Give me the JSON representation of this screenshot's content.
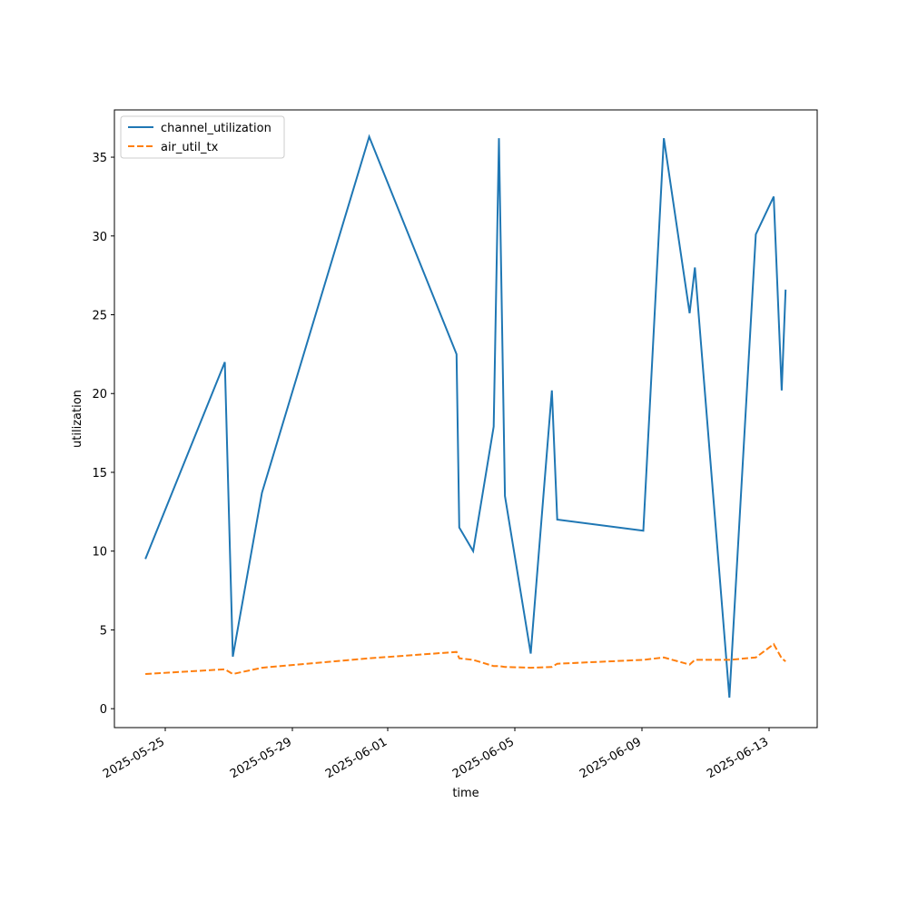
{
  "chart_data": {
    "type": "line",
    "x": [
      "2025-05-24T09:00",
      "2025-05-26T21:00",
      "2025-05-27T03:00",
      "2025-05-28T01:00",
      "2025-05-31T10:00",
      "2025-06-03T04:00",
      "2025-06-03T06:00",
      "2025-06-03T16:30",
      "2025-06-04T08:00",
      "2025-06-04T12:00",
      "2025-06-04T16:30",
      "2025-06-05T12:00",
      "2025-06-06T04:00",
      "2025-06-06T08:00",
      "2025-06-09T01:00",
      "2025-06-09T16:30",
      "2025-06-10T12:00",
      "2025-06-10T16:00",
      "2025-06-11T18:00",
      "2025-06-12T14:00",
      "2025-06-13T03:30",
      "2025-06-13T09:30",
      "2025-06-13T12:30"
    ],
    "series": [
      {
        "name": "channel_utilization",
        "color": "#1f77b4",
        "dash": false,
        "values": [
          9.5,
          22.0,
          3.3,
          13.7,
          36.3,
          22.5,
          11.5,
          10.0,
          17.9,
          36.2,
          13.5,
          3.5,
          20.2,
          12.0,
          11.3,
          36.2,
          25.1,
          28.0,
          0.7,
          30.1,
          32.5,
          20.2,
          26.6
        ]
      },
      {
        "name": "air_util_tx",
        "color": "#ff7f0e",
        "dash": true,
        "values": [
          2.2,
          2.5,
          2.2,
          2.6,
          3.2,
          3.6,
          3.2,
          3.1,
          2.7,
          2.7,
          2.65,
          2.6,
          2.65,
          2.85,
          3.1,
          3.25,
          2.8,
          3.1,
          3.1,
          3.25,
          4.1,
          3.2,
          3.0
        ]
      }
    ],
    "xlabel": "time",
    "ylabel": "utilization",
    "xlim": [
      "2025-05-23T09:36",
      "2025-06-14T12:20"
    ],
    "xticks": [
      "2025-05-25",
      "2025-05-29",
      "2025-06-01",
      "2025-06-05",
      "2025-06-09",
      "2025-06-13"
    ],
    "ylim": [
      -1.2,
      38.0
    ],
    "yticks": [
      0,
      5,
      10,
      15,
      20,
      25,
      30,
      35
    ],
    "legend": "upper left"
  }
}
